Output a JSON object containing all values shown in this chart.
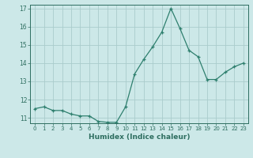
{
  "x": [
    0,
    1,
    2,
    3,
    4,
    5,
    6,
    7,
    8,
    9,
    10,
    11,
    12,
    13,
    14,
    15,
    16,
    17,
    18,
    19,
    20,
    21,
    22,
    23
  ],
  "y": [
    11.5,
    11.6,
    11.4,
    11.4,
    11.2,
    11.1,
    11.1,
    10.8,
    10.75,
    10.75,
    11.6,
    13.4,
    14.2,
    14.9,
    15.7,
    17.0,
    15.9,
    14.7,
    14.35,
    13.1,
    13.1,
    13.5,
    13.8,
    14.0
  ],
  "line_color": "#2e7f6e",
  "marker": "+",
  "marker_size": 3.5,
  "background_color": "#cce8e8",
  "grid_color": "#aacccc",
  "xlabel": "Humidex (Indice chaleur)",
  "xlim": [
    -0.5,
    23.5
  ],
  "ylim": [
    10.7,
    17.2
  ],
  "yticks": [
    11,
    12,
    13,
    14,
    15,
    16,
    17
  ],
  "xticks": [
    0,
    1,
    2,
    3,
    4,
    5,
    6,
    7,
    8,
    9,
    10,
    11,
    12,
    13,
    14,
    15,
    16,
    17,
    18,
    19,
    20,
    21,
    22,
    23
  ],
  "tick_color": "#2e6e60",
  "label_color": "#2e6e60",
  "axis_color": "#2e6e60"
}
